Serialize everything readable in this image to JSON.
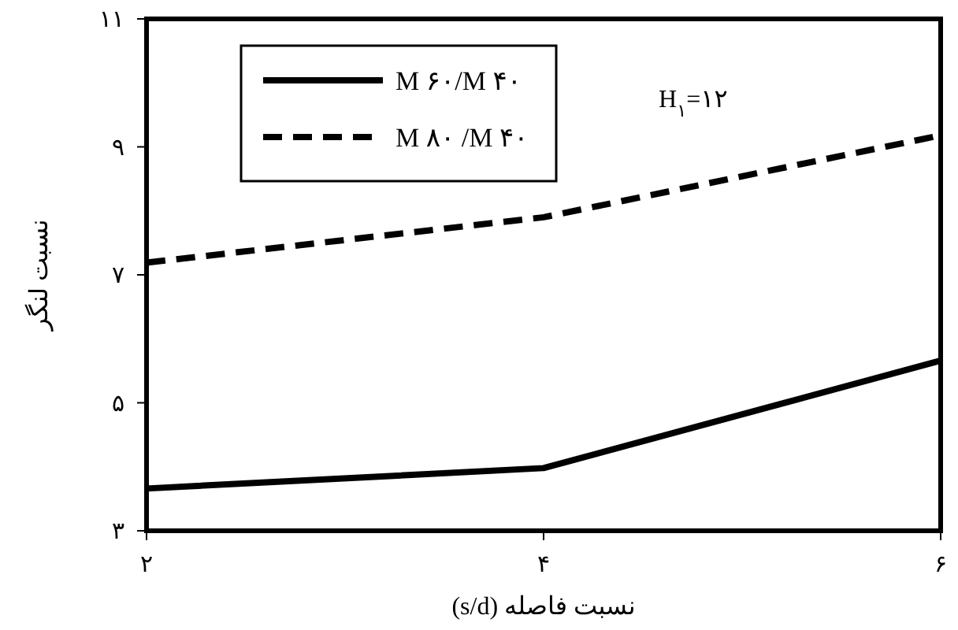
{
  "chart_data": {
    "type": "line",
    "xlabel": "نسبت فاصله (s/d)",
    "ylabel": "نسبت لنگر",
    "x": [
      2,
      4,
      6
    ],
    "series": [
      {
        "name": "M ۶۰/M ۴۰",
        "color": "#000000",
        "line_style": "solid",
        "values": [
          3.66,
          3.98,
          5.66
        ]
      },
      {
        "name": "M ۸۰ /M ۴۰",
        "color": "#000000",
        "line_style": "dashed",
        "values": [
          7.19,
          7.9,
          9.18
        ]
      }
    ],
    "xlim": [
      2,
      6
    ],
    "xticks": [
      {
        "value": 2,
        "label": "۲"
      },
      {
        "value": 4,
        "label": "۴"
      },
      {
        "value": 6,
        "label": "۶"
      }
    ],
    "ylim": [
      3,
      11
    ],
    "yticks": [
      {
        "value": 3,
        "label": "۳"
      },
      {
        "value": 5,
        "label": "۵"
      },
      {
        "value": 7,
        "label": "۷"
      },
      {
        "value": 9,
        "label": "۹"
      },
      {
        "value": 11,
        "label": "۱۱"
      }
    ],
    "annotations": [
      "H$_{۱}$=۱۲"
    ],
    "legend": "top left",
    "grid": false,
    "marker": "none"
  }
}
